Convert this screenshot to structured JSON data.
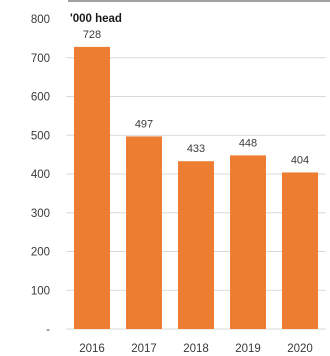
{
  "chart_data": {
    "type": "bar",
    "unit_label": "'000 head",
    "categories": [
      "2016",
      "2017",
      "2018",
      "2019",
      "2020"
    ],
    "values": [
      728,
      497,
      433,
      448,
      404
    ],
    "value_labels": [
      "728",
      "497",
      "433",
      "448",
      "404"
    ],
    "ylim": [
      0,
      800
    ],
    "y_ticks": [
      {
        "value": 0,
        "label": "-"
      },
      {
        "value": 100,
        "label": "100"
      },
      {
        "value": 200,
        "label": "200"
      },
      {
        "value": 300,
        "label": "300"
      },
      {
        "value": 400,
        "label": "400"
      },
      {
        "value": 500,
        "label": "500"
      },
      {
        "value": 600,
        "label": "600"
      },
      {
        "value": 700,
        "label": "700"
      },
      {
        "value": 800,
        "label": "800"
      }
    ],
    "grid": true,
    "bar_color": "#ED7D31",
    "grid_color": "#D9D9D9"
  }
}
